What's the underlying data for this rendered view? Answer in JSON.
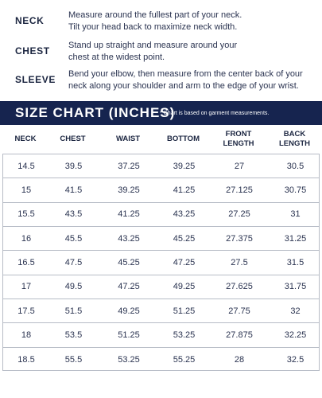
{
  "instructions": [
    {
      "label": "NECK",
      "text": "Measure around the fullest part of your neck.\nTilt your head back to maximize neck width."
    },
    {
      "label": "CHEST",
      "text": "Stand up straight and measure around your\nchest at the widest point."
    },
    {
      "label": "SLEEVE",
      "text": "Bend your elbow, then measure from the center back of your\nneck along your shoulder and arm to the edge of your wrist."
    }
  ],
  "banner": {
    "title": "SIZE CHART (INCHES)",
    "note": "* Chart is based on garment measurements."
  },
  "table": {
    "headers": [
      "NECK",
      "CHEST",
      "WAIST",
      "BOTTOM",
      "FRONT\nLENGTH",
      "BACK\nLENGTH"
    ],
    "rows": [
      [
        "14.5",
        "39.5",
        "37.25",
        "39.25",
        "27",
        "30.5"
      ],
      [
        "15",
        "41.5",
        "39.25",
        "41.25",
        "27.125",
        "30.75"
      ],
      [
        "15.5",
        "43.5",
        "41.25",
        "43.25",
        "27.25",
        "31"
      ],
      [
        "16",
        "45.5",
        "43.25",
        "45.25",
        "27.375",
        "31.25"
      ],
      [
        "16.5",
        "47.5",
        "45.25",
        "47.25",
        "27.5",
        "31.5"
      ],
      [
        "17",
        "49.5",
        "47.25",
        "49.25",
        "27.625",
        "31.75"
      ],
      [
        "17.5",
        "51.5",
        "49.25",
        "51.25",
        "27.75",
        "32"
      ],
      [
        "18",
        "53.5",
        "51.25",
        "53.25",
        "27.875",
        "32.25"
      ],
      [
        "18.5",
        "55.5",
        "53.25",
        "55.25",
        "28",
        "32.5"
      ]
    ]
  },
  "colors": {
    "banner_bg": "#16244f",
    "text": "#1b2540",
    "grid": "#b7bcc6"
  }
}
